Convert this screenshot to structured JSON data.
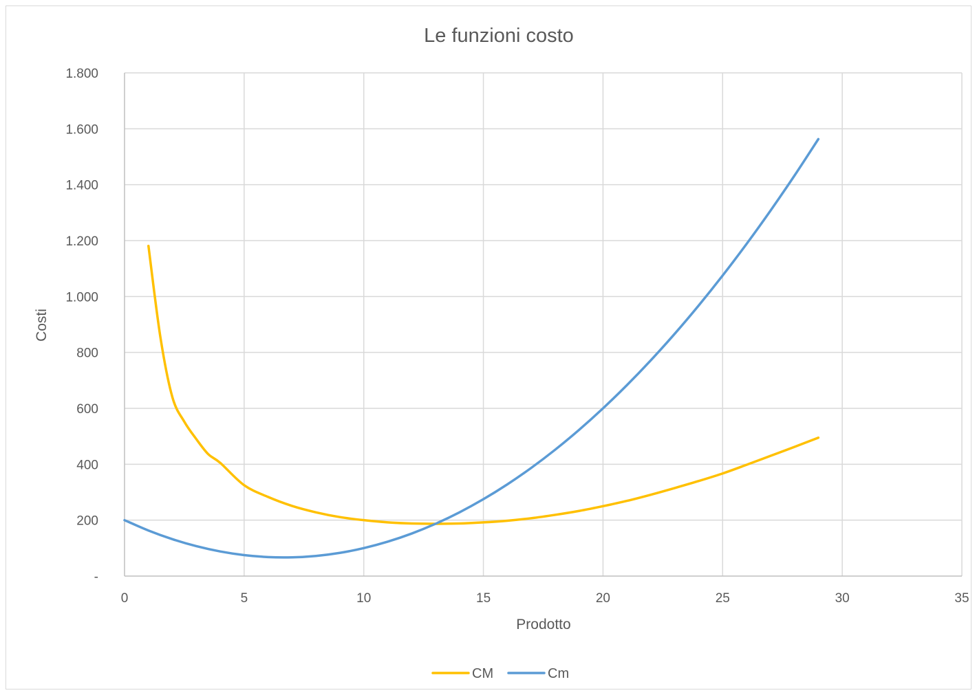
{
  "chart_data": {
    "type": "line",
    "title": "Le funzioni costo",
    "xlabel": "Prodotto",
    "ylabel": "Costi",
    "xlim": [
      0,
      35
    ],
    "ylim": [
      0,
      1800
    ],
    "x_ticks": [
      0,
      5,
      10,
      15,
      20,
      25,
      30,
      35
    ],
    "x_tick_labels": [
      "0",
      "5",
      "10",
      "15",
      "20",
      "25",
      "30",
      "35"
    ],
    "y_ticks": [
      0,
      200,
      400,
      600,
      800,
      1000,
      1200,
      1400,
      1600,
      1800
    ],
    "y_tick_labels": [
      "-",
      "200",
      "400",
      "600",
      "800",
      "1.000",
      "1.200",
      "1.400",
      "1.600",
      "1.800"
    ],
    "grid": true,
    "legend": "bottom",
    "series": [
      {
        "name": "CM",
        "color": "#FFC000",
        "x": [
          1,
          1.5,
          2,
          2.5,
          3,
          3.5,
          4,
          5,
          6,
          7,
          8,
          9,
          10,
          11,
          12,
          13,
          14,
          15,
          16,
          17,
          18,
          19,
          20,
          21,
          22,
          23,
          24,
          25,
          26,
          27,
          28,
          29
        ],
        "y": [
          1181,
          854,
          640,
          552,
          490,
          436,
          405,
          325,
          283,
          251,
          228,
          211,
          200,
          192,
          188,
          187,
          188,
          192,
          198,
          207,
          219,
          233,
          250,
          269,
          291,
          315,
          340,
          367,
          398,
          430,
          462,
          495
        ]
      },
      {
        "name": "Cm",
        "color": "#5B9BD5",
        "x": [
          0,
          1,
          2,
          3,
          4,
          5,
          6,
          7,
          8,
          9,
          10,
          11,
          12,
          13,
          14,
          15,
          16,
          17,
          18,
          19,
          20,
          21,
          22,
          23,
          24,
          25,
          26,
          27,
          28,
          29
        ],
        "y": [
          200,
          163,
          132,
          107,
          88,
          75,
          68,
          67,
          72,
          83,
          100,
          123,
          152,
          187,
          228,
          275,
          328,
          387,
          452,
          523,
          600,
          683,
          772,
          867,
          968,
          1075,
          1188,
          1307,
          1432,
          1563
        ]
      }
    ]
  }
}
